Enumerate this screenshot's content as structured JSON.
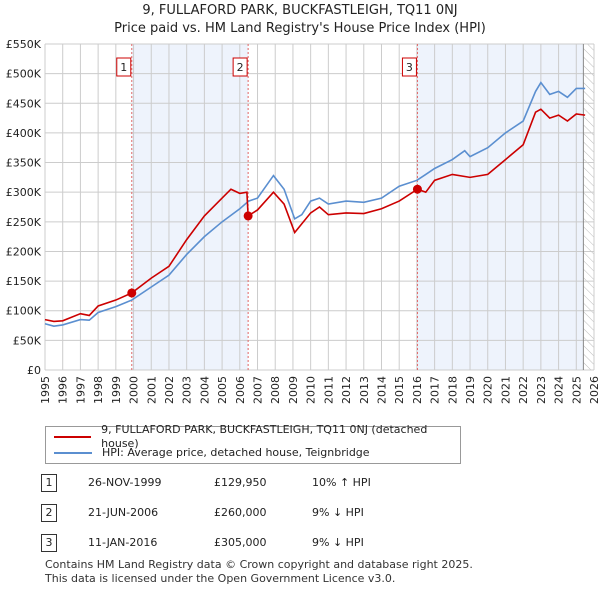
{
  "title": "9, FULLAFORD PARK, BUCKFASTLEIGH, TQ11 0NJ",
  "subtitle": "Price paid vs. HM Land Registry's House Price Index (HPI)",
  "chart_data": {
    "type": "line",
    "xlim": [
      1995,
      2026
    ],
    "ylim": [
      0,
      550000
    ],
    "yticks": [
      0,
      50000,
      100000,
      150000,
      200000,
      250000,
      300000,
      350000,
      400000,
      450000,
      500000,
      550000
    ],
    "ytick_labels": [
      "£0",
      "£50K",
      "£100K",
      "£150K",
      "£200K",
      "£250K",
      "£300K",
      "£350K",
      "£400K",
      "£450K",
      "£500K",
      "£550K"
    ],
    "xticks": [
      1995,
      1996,
      1997,
      1998,
      1999,
      2000,
      2001,
      2002,
      2003,
      2004,
      2005,
      2006,
      2007,
      2008,
      2009,
      2010,
      2011,
      2012,
      2013,
      2014,
      2015,
      2016,
      2017,
      2018,
      2019,
      2020,
      2021,
      2022,
      2023,
      2024,
      2025,
      2026
    ],
    "grid": true,
    "series": [
      {
        "name": "9, FULLAFORD PARK, BUCKFASTLEIGH, TQ11 0NJ (detached house)",
        "color": "#cc0000",
        "x": [
          1995,
          1995.5,
          1996,
          1997,
          1997.5,
          1998,
          1999,
          1999.9,
          2001,
          2002,
          2003,
          2004,
          2005,
          2005.5,
          2006,
          2006.4,
          2006.47,
          2007,
          2007.9,
          2008.5,
          2009.1,
          2010,
          2010.5,
          2011,
          2012,
          2013,
          2014,
          2015,
          2016.03,
          2016.5,
          2017,
          2018,
          2019,
          2020,
          2021,
          2022,
          2022.7,
          2023,
          2023.5,
          2024,
          2024.5,
          2025,
          2025.5
        ],
        "y": [
          85000,
          82000,
          83000,
          95000,
          92000,
          108000,
          118000,
          130000,
          155000,
          175000,
          220000,
          260000,
          290000,
          305000,
          298000,
          300000,
          260000,
          270000,
          300000,
          280000,
          232000,
          265000,
          275000,
          262000,
          265000,
          264000,
          272000,
          285000,
          305000,
          300000,
          320000,
          330000,
          325000,
          330000,
          355000,
          380000,
          435000,
          440000,
          425000,
          430000,
          420000,
          432000,
          430000
        ]
      },
      {
        "name": "HPI: Average price, detached house, Teignbridge",
        "color": "#5b8fd0",
        "x": [
          1995,
          1995.5,
          1996,
          1997,
          1997.5,
          1998,
          1999,
          1999.9,
          2001,
          2002,
          2003,
          2004,
          2005,
          2006,
          2006.5,
          2007,
          2007.9,
          2008.5,
          2009.1,
          2009.5,
          2010,
          2010.5,
          2011,
          2012,
          2013,
          2014,
          2015,
          2016,
          2016.5,
          2017,
          2018,
          2018.7,
          2019,
          2020,
          2021,
          2022,
          2022.7,
          2023,
          2023.5,
          2024,
          2024.5,
          2025,
          2025.5
        ],
        "y": [
          78000,
          74000,
          76000,
          85000,
          84000,
          97000,
          107000,
          118000,
          140000,
          160000,
          195000,
          225000,
          250000,
          272000,
          285000,
          290000,
          328000,
          305000,
          255000,
          262000,
          285000,
          290000,
          280000,
          285000,
          283000,
          290000,
          310000,
          320000,
          330000,
          340000,
          355000,
          370000,
          360000,
          375000,
          400000,
          420000,
          470000,
          485000,
          465000,
          470000,
          460000,
          475000,
          475000
        ]
      }
    ],
    "sales": [
      {
        "label": "1",
        "x": 1999.9,
        "y": 129950
      },
      {
        "label": "2",
        "x": 2006.47,
        "y": 260000
      },
      {
        "label": "3",
        "x": 2016.03,
        "y": 305000
      }
    ],
    "shaded": [
      [
        1999.9,
        2006.47
      ],
      [
        2016.03,
        2025.4
      ]
    ],
    "hatch_from": 2025.4
  },
  "legend": [
    "9, FULLAFORD PARK, BUCKFASTLEIGH, TQ11 0NJ (detached house)",
    "HPI: Average price, detached house, Teignbridge"
  ],
  "table": [
    {
      "num": "1",
      "date": "26-NOV-1999",
      "price": "£129,950",
      "hpi": "10% ↑ HPI"
    },
    {
      "num": "2",
      "date": "21-JUN-2006",
      "price": "£260,000",
      "hpi": "9% ↓ HPI"
    },
    {
      "num": "3",
      "date": "11-JAN-2016",
      "price": "£305,000",
      "hpi": "9% ↓ HPI"
    }
  ],
  "footer": [
    "Contains HM Land Registry data © Crown copyright and database right 2025.",
    "This data is licensed under the Open Government Licence v3.0."
  ]
}
